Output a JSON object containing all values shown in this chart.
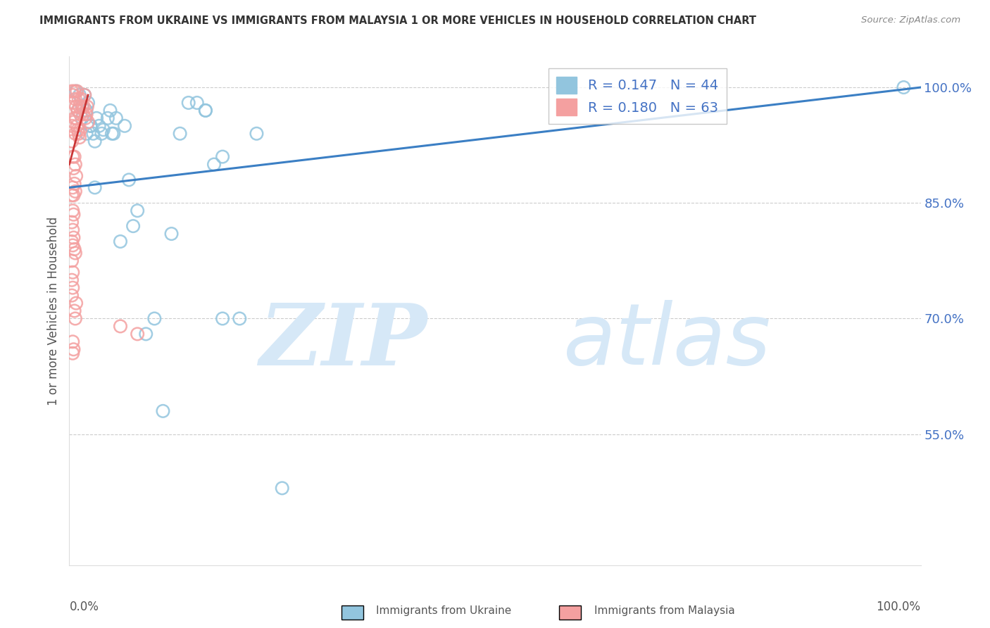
{
  "title": "IMMIGRANTS FROM UKRAINE VS IMMIGRANTS FROM MALAYSIA 1 OR MORE VEHICLES IN HOUSEHOLD CORRELATION CHART",
  "source": "Source: ZipAtlas.com",
  "ylabel": "1 or more Vehicles in Household",
  "xlim": [
    0.0,
    1.0
  ],
  "ylim": [
    0.38,
    1.04
  ],
  "ukraine_R": 0.147,
  "ukraine_N": 44,
  "malaysia_R": 0.18,
  "malaysia_N": 63,
  "ukraine_color": "#92c5de",
  "malaysia_color": "#f4a0a0",
  "ukraine_line_color": "#3b7fc4",
  "malaysia_line_color": "#c93535",
  "ukraine_scatter_x": [
    0.008,
    0.01,
    0.012,
    0.015,
    0.015,
    0.018,
    0.02,
    0.022,
    0.025,
    0.028,
    0.03,
    0.032,
    0.035,
    0.038,
    0.04,
    0.045,
    0.048,
    0.05,
    0.052,
    0.055,
    0.06,
    0.065,
    0.07,
    0.075,
    0.08,
    0.09,
    0.1,
    0.11,
    0.12,
    0.13,
    0.14,
    0.15,
    0.16,
    0.17,
    0.18,
    0.2,
    0.22,
    0.25,
    0.18,
    0.16,
    0.02,
    0.025,
    0.03,
    0.98
  ],
  "ukraine_scatter_y": [
    0.995,
    0.97,
    0.99,
    0.975,
    0.96,
    0.99,
    0.97,
    0.98,
    0.95,
    0.94,
    0.93,
    0.96,
    0.95,
    0.94,
    0.945,
    0.96,
    0.97,
    0.94,
    0.94,
    0.96,
    0.8,
    0.95,
    0.88,
    0.82,
    0.84,
    0.68,
    0.7,
    0.58,
    0.81,
    0.94,
    0.98,
    0.98,
    0.97,
    0.9,
    0.7,
    0.7,
    0.94,
    0.48,
    0.91,
    0.97,
    0.94,
    0.95,
    0.87,
    1.0
  ],
  "malaysia_scatter_x": [
    0.003,
    0.004,
    0.005,
    0.006,
    0.007,
    0.008,
    0.009,
    0.01,
    0.011,
    0.012,
    0.013,
    0.014,
    0.015,
    0.016,
    0.017,
    0.018,
    0.019,
    0.02,
    0.021,
    0.022,
    0.003,
    0.005,
    0.006,
    0.007,
    0.008,
    0.009,
    0.01,
    0.011,
    0.012,
    0.013,
    0.003,
    0.004,
    0.005,
    0.006,
    0.007,
    0.008,
    0.004,
    0.005,
    0.006,
    0.007,
    0.003,
    0.004,
    0.005,
    0.003,
    0.004,
    0.003,
    0.004,
    0.005,
    0.006,
    0.007,
    0.003,
    0.004,
    0.003,
    0.004,
    0.003,
    0.008,
    0.006,
    0.007,
    0.06,
    0.08,
    0.004,
    0.005,
    0.004
  ],
  "malaysia_scatter_y": [
    0.995,
    0.99,
    0.98,
    0.995,
    0.985,
    0.975,
    0.995,
    0.97,
    0.985,
    0.975,
    0.965,
    0.985,
    0.975,
    0.965,
    0.975,
    0.99,
    0.96,
    0.965,
    0.975,
    0.955,
    0.95,
    0.955,
    0.96,
    0.94,
    0.96,
    0.95,
    0.945,
    0.94,
    0.935,
    0.945,
    0.93,
    0.91,
    0.895,
    0.91,
    0.9,
    0.885,
    0.87,
    0.86,
    0.875,
    0.865,
    0.86,
    0.84,
    0.835,
    0.825,
    0.815,
    0.8,
    0.795,
    0.805,
    0.79,
    0.785,
    0.775,
    0.76,
    0.75,
    0.74,
    0.73,
    0.72,
    0.71,
    0.7,
    0.69,
    0.68,
    0.67,
    0.66,
    0.655
  ],
  "ukraine_line_x": [
    0.0,
    1.0
  ],
  "ukraine_line_y": [
    0.87,
    1.0
  ],
  "malaysia_line_x": [
    0.0,
    0.022
  ],
  "malaysia_line_y": [
    0.9,
    0.99
  ],
  "y_ticks": [
    0.55,
    0.7,
    0.85,
    1.0
  ],
  "y_tick_labels": [
    "55.0%",
    "70.0%",
    "85.0%",
    "100.0%"
  ],
  "watermark_zip": "ZIP",
  "watermark_atlas": "atlas",
  "watermark_color": "#d6e8f7",
  "legend_ukraine_label": "Immigrants from Ukraine",
  "legend_malaysia_label": "Immigrants from Malaysia",
  "background_color": "#ffffff",
  "grid_color": "#cccccc",
  "label_color": "#4472c4"
}
